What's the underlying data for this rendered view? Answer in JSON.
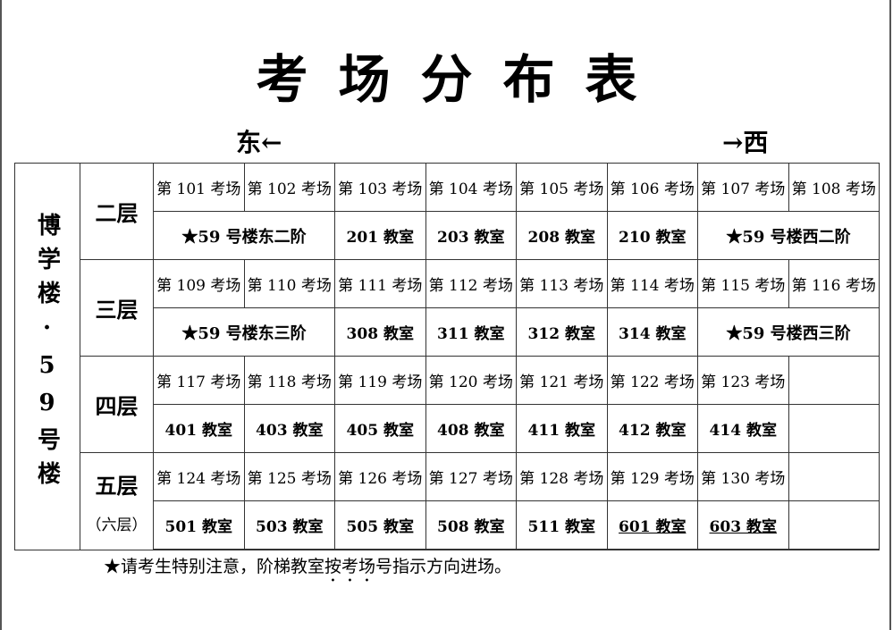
{
  "title": "考场分布表",
  "directions": {
    "east": "东←",
    "west": "→西"
  },
  "building": "博学楼·59号楼",
  "floors": [
    {
      "label": "二层",
      "sub": "",
      "exams": [
        "第 101 考场",
        "第 102 考场",
        "第 103 考场",
        "第 104 考场",
        "第 105 考场",
        "第 106 考场",
        "第 107 考场",
        "第 108 考场"
      ],
      "rooms": [
        {
          "text": "★59 号楼东二阶",
          "span": 2,
          "star": true
        },
        {
          "text": "201 教室"
        },
        {
          "text": "203 教室"
        },
        {
          "text": "208 教室"
        },
        {
          "text": "210 教室"
        },
        {
          "text": "★59 号楼西二阶",
          "span": 2,
          "star": true
        }
      ]
    },
    {
      "label": "三层",
      "sub": "",
      "exams": [
        "第 109 考场",
        "第 110 考场",
        "第 111 考场",
        "第 112 考场",
        "第 113 考场",
        "第 114 考场",
        "第 115 考场",
        "第 116 考场"
      ],
      "rooms": [
        {
          "text": "★59 号楼东三阶",
          "span": 2,
          "star": true
        },
        {
          "text": "308 教室"
        },
        {
          "text": "311 教室"
        },
        {
          "text": "312 教室"
        },
        {
          "text": "314 教室"
        },
        {
          "text": "★59 号楼西三阶",
          "span": 2,
          "star": true
        }
      ]
    },
    {
      "label": "四层",
      "sub": "",
      "exams": [
        "第 117 考场",
        "第 118 考场",
        "第 119 考场",
        "第 120 考场",
        "第 121 考场",
        "第 122 考场",
        "第 123 考场",
        ""
      ],
      "rooms": [
        {
          "text": "401 教室"
        },
        {
          "text": "403 教室"
        },
        {
          "text": "405 教室"
        },
        {
          "text": "408 教室"
        },
        {
          "text": "411 教室"
        },
        {
          "text": "412 教室"
        },
        {
          "text": "414 教室"
        },
        {
          "text": ""
        }
      ]
    },
    {
      "label": "五层",
      "sub": "（六层）",
      "exams": [
        "第 124 考场",
        "第 125 考场",
        "第 126 考场",
        "第 127 考场",
        "第 128 考场",
        "第 129 考场",
        "第 130 考场",
        ""
      ],
      "rooms": [
        {
          "text": "501 教室"
        },
        {
          "text": "503 教室"
        },
        {
          "text": "505 教室"
        },
        {
          "text": "508 教室"
        },
        {
          "text": "511 教室"
        },
        {
          "text": "601 教室",
          "underline": true
        },
        {
          "text": "603 教室",
          "underline": true
        },
        {
          "text": ""
        }
      ]
    }
  ],
  "note": {
    "before": "★请考生特别注意，阶梯教室",
    "emphasis": "按考场",
    "after": "号指示方向进场。"
  }
}
